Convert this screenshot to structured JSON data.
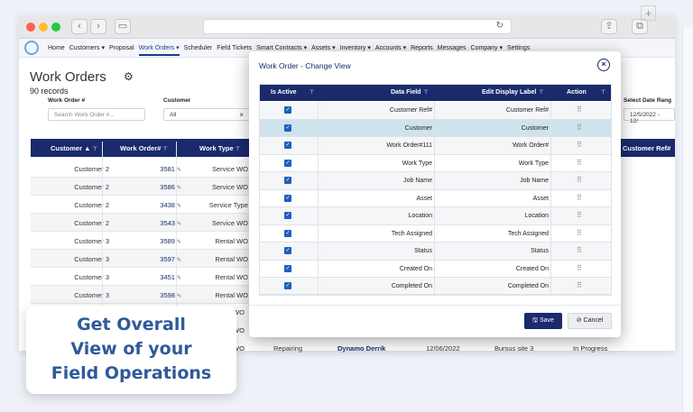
{
  "app_nav": {
    "items": [
      "Home",
      "Customers ▾",
      "Proposal",
      "Work Orders ▾",
      "Scheduler",
      "Field Tickets",
      "Smart Contracts ▾",
      "Assets ▾",
      "Inventory ▾",
      "Accounts ▾",
      "Reports",
      "Messages",
      "Company ▾",
      "Settings"
    ],
    "active_index": 3
  },
  "page": {
    "title": "Work Orders",
    "records": "90 records",
    "filters": {
      "work_order_label": "Work Order #",
      "work_order_placeholder": "Search Work Order #...",
      "customer_label": "Customer",
      "customer_value": "All",
      "date_label": "Select Date Rang",
      "date_value": "12/5/2022 - 12/"
    },
    "table_headers": [
      "Customer ▲",
      "Work Order#",
      "Work Type",
      "Customer Ref#"
    ],
    "rows": [
      {
        "customer": "Customer 2",
        "wo": "3581",
        "type": "Service WO"
      },
      {
        "customer": "Customer 2",
        "wo": "3586",
        "type": "Service WO"
      },
      {
        "customer": "Customer 2",
        "wo": "3438",
        "type": "Service Type"
      },
      {
        "customer": "Customer 2",
        "wo": "3543",
        "type": "Service WO"
      },
      {
        "customer": "Customer 3",
        "wo": "3589",
        "type": "Rental WO"
      },
      {
        "customer": "Customer 3",
        "wo": "3597",
        "type": "Rental WO"
      },
      {
        "customer": "Customer 3",
        "wo": "3451",
        "type": "Rental WO"
      },
      {
        "customer": "Customer 3",
        "wo": "3598",
        "type": "Rental WO"
      }
    ],
    "partial_rows": [
      "WO",
      "WO",
      "WO"
    ],
    "last_row": {
      "type": "Repairing",
      "tech": "Dynamo Derrik",
      "date": "12/06/2022",
      "site": "Bursus site 3",
      "status": "In Progress"
    }
  },
  "modal": {
    "title": "Work Order - Change View",
    "headers": {
      "active": "Is Active",
      "field": "Data Field",
      "display": "Edit Display Label",
      "action": "Action"
    },
    "rows": [
      {
        "field": "Customer Ref#",
        "display": "Customer Ref#"
      },
      {
        "field": "Customer",
        "display": "Customer"
      },
      {
        "field": "Work Order#111",
        "display": "Work Order#"
      },
      {
        "field": "Work Type",
        "display": "Work Type"
      },
      {
        "field": "Job Name",
        "display": "Job Name"
      },
      {
        "field": "Asset",
        "display": "Asset"
      },
      {
        "field": "Location",
        "display": "Location"
      },
      {
        "field": "Tech Assigned",
        "display": "Tech Assigned"
      },
      {
        "field": "Status",
        "display": "Status"
      },
      {
        "field": "Created On",
        "display": "Created On"
      },
      {
        "field": "Completed On",
        "display": "Completed On"
      }
    ],
    "selected_row": 1,
    "save_label": "Save",
    "cancel_label": "Cancel"
  },
  "promo": {
    "line1": "Get Overall",
    "line2": "View of your",
    "line3": "Field Operations"
  },
  "colors": {
    "brand_navy": "#1a2a6c",
    "selected_row": "#cfe3ef",
    "promo_text": "#2f5a9a"
  }
}
